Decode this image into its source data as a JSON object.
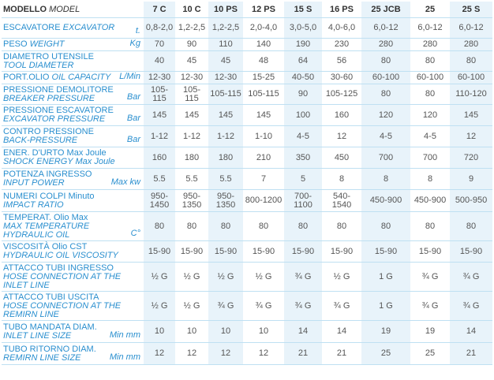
{
  "header": {
    "it": "MODELLO",
    "en": "MODEL",
    "models": [
      "7 C",
      "10 C",
      "10 PS",
      "12 PS",
      "15 S",
      "16 PS",
      "25 JCB",
      "25",
      "25 S"
    ]
  },
  "rows": [
    {
      "label": [
        {
          "it": "ESCAVATORE",
          "en": "EXCAVATOR"
        }
      ],
      "unit": "t.",
      "values": [
        "0,8-2,0",
        "1,2-2,5",
        "1,2-2,5",
        "2,0-4,0",
        "3,0-5,0",
        "4,0-6,0",
        "6,0-12",
        "6,0-12",
        "6,0-12"
      ]
    },
    {
      "label": [
        {
          "it": "PESO",
          "en": "WEIGHT"
        }
      ],
      "unit": "Kg",
      "values": [
        "70",
        "90",
        "110",
        "140",
        "190",
        "230",
        "280",
        "280",
        "280"
      ]
    },
    {
      "label": [
        {
          "it": "DIAMETRO UTENSILE"
        },
        {
          "en": "TOOL DIAMETER"
        }
      ],
      "values": [
        "40",
        "45",
        "45",
        "48",
        "64",
        "56",
        "80",
        "80",
        "80"
      ]
    },
    {
      "label": [
        {
          "it": "PORT.OLIO",
          "en": "OIL CAPACITY"
        }
      ],
      "unit": "L/Min",
      "values": [
        "12-30",
        "12-30",
        "12-30",
        "15-25",
        "40-50",
        "30-60",
        "60-100",
        "60-100",
        "60-100"
      ]
    },
    {
      "label": [
        {
          "it": "PRESSIONE DEMOLITORE"
        },
        {
          "en": "BREAKER PRESSURE"
        }
      ],
      "unit": "Bar",
      "values": [
        "105-115",
        "105-115",
        "105-115",
        "105-115",
        "90",
        "105-125",
        "80",
        "80",
        "110-120"
      ]
    },
    {
      "label": [
        {
          "it": "PRESSIONE ESCAVATORE"
        },
        {
          "en": "EXCAVATOR PRESSURE"
        }
      ],
      "unit": "Bar",
      "values": [
        "145",
        "145",
        "145",
        "145",
        "100",
        "160",
        "120",
        "120",
        "145"
      ]
    },
    {
      "label": [
        {
          "it": "CONTRO PRESSIONE"
        },
        {
          "en": "BACK-PRESSURE"
        }
      ],
      "unit": "Bar",
      "values": [
        "1-12",
        "1-12",
        "1-12",
        "1-10",
        "4-5",
        "12",
        "4-5",
        "4-5",
        "12"
      ]
    },
    {
      "label": [
        {
          "it": "ENER. D'URTO Max Joule"
        },
        {
          "en": "SHOCK ENERGY Max Joule"
        }
      ],
      "values": [
        "160",
        "180",
        "180",
        "210",
        "350",
        "450",
        "700",
        "700",
        "720"
      ]
    },
    {
      "label": [
        {
          "it": "POTENZA INGRESSO"
        },
        {
          "en": "INPUT POWER"
        }
      ],
      "unit": "Max kw",
      "values": [
        "5.5",
        "5.5",
        "5.5",
        "7",
        "5",
        "8",
        "8",
        "8",
        "9"
      ]
    },
    {
      "label": [
        {
          "it": "NUMERI COLPI Minuto"
        },
        {
          "en": "IMPACT RATIO"
        }
      ],
      "values": [
        "950-1450",
        "950-1350",
        "950-1350",
        "800-1200",
        "700-1100",
        "540-1540",
        "450-900",
        "450-900",
        "500-950"
      ]
    },
    {
      "label": [
        {
          "it": "TEMPERAT. Olio Max"
        },
        {
          "en": "MAX TEMPERATURE"
        },
        {
          "en": "HYDRAULIC OIL"
        }
      ],
      "unit": "C°",
      "values": [
        "80",
        "80",
        "80",
        "80",
        "80",
        "80",
        "80",
        "80",
        "80"
      ]
    },
    {
      "label": [
        {
          "it": "VISCOSITÀ Olio CST"
        },
        {
          "en": "HYDRAULIC OIL VISCOSITY"
        }
      ],
      "values": [
        "15-90",
        "15-90",
        "15-90",
        "15-90",
        "15-90",
        "15-90",
        "15-90",
        "15-90",
        "15-90"
      ]
    },
    {
      "label": [
        {
          "it": "ATTACCO TUBI INGRESSO"
        },
        {
          "en": "HOSE CONNECTION AT THE"
        },
        {
          "en": "INLET LINE"
        }
      ],
      "values": [
        "½ G",
        "½ G",
        "½ G",
        "½ G",
        "¾ G",
        "½ G",
        "1 G",
        "¾ G",
        "¾ G"
      ]
    },
    {
      "label": [
        {
          "it": "ATTACCO TUBI USCITA"
        },
        {
          "en": "HOSE CONNECTION AT THE"
        },
        {
          "en": "REMIRN LINE"
        }
      ],
      "values": [
        "½ G",
        "½ G",
        "¾ G",
        "¾ G",
        "¾ G",
        "¾ G",
        "1 G",
        "¾ G",
        "¾ G"
      ]
    },
    {
      "label": [
        {
          "it": "TUBO MANDATA DIAM."
        },
        {
          "en": "INLET LINE SIZE"
        }
      ],
      "unit": "Min mm",
      "values": [
        "10",
        "10",
        "10",
        "10",
        "14",
        "14",
        "19",
        "19",
        "14"
      ]
    },
    {
      "label": [
        {
          "it": "TUBO RITORNO DIAM."
        },
        {
          "en": "REMIRN LINE SIZE"
        }
      ],
      "unit": "Min mm",
      "values": [
        "12",
        "12",
        "12",
        "12",
        "21",
        "21",
        "25",
        "25",
        "21"
      ]
    }
  ]
}
